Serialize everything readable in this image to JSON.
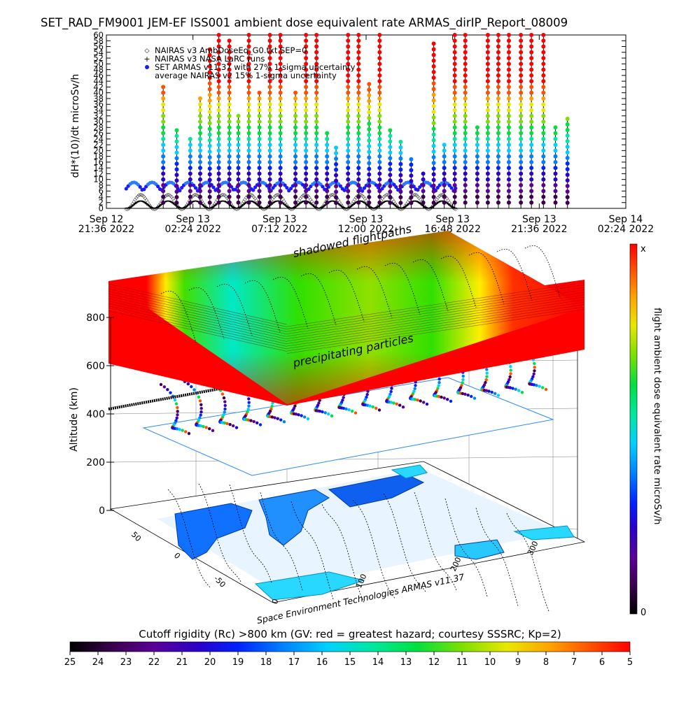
{
  "title": "SET_RAD_FM9001  JEM-EF ISS001 ambient dose equivalent rate ARMAS_dirIP_Report_08009",
  "chart_data": [
    {
      "type": "scatter",
      "ylabel": "dH*(10)/dt microSv/h",
      "ylim": [
        0,
        60
      ],
      "yticks": [
        0,
        2,
        4,
        6,
        8,
        10,
        12,
        14,
        16,
        18,
        20,
        22,
        24,
        26,
        28,
        30,
        32,
        34,
        36,
        38,
        40,
        42,
        44,
        46,
        48,
        50,
        52,
        54,
        56,
        58,
        60
      ],
      "xlim": [
        "Sep 12 21:36 2022",
        "Sep 14 02:24 2022"
      ],
      "xticks": [
        {
          "line1": "Sep 12",
          "line2": "21:36 2022"
        },
        {
          "line1": "Sep 13",
          "line2": "02:24 2022"
        },
        {
          "line1": "Sep 13",
          "line2": "07:12 2022"
        },
        {
          "line1": "Sep 13",
          "line2": "12:00 2022"
        },
        {
          "line1": "Sep 13",
          "line2": "16:48 2022"
        },
        {
          "line1": "Sep 13",
          "line2": "21:36 2022"
        },
        {
          "line1": "Sep 14",
          "line2": "02:24 2022"
        }
      ],
      "legend_position": "top-left",
      "legend": [
        {
          "marker": "diamond",
          "text": "NAIRAS v3 AmbDoseEq_G0.txt SEP=0"
        },
        {
          "marker": "plus",
          "text": "NAIRAS v3 NASA LaRC runs"
        },
        {
          "marker": "filled-circle",
          "color": "#1a1aff",
          "text": "SET ARMAS v11.37 with 27% 1-sigma uncertainty"
        },
        {
          "marker": "none",
          "text": "average NAIRAS v2 15% 1-sigma uncertainty"
        }
      ],
      "series": [
        {
          "name": "SET ARMAS v11.37 with 27% 1-sigma uncertainty",
          "x_hours_range": [
            1.1,
            19.4
          ],
          "spikes": [
            {
              "t": "Sep 13 00:45",
              "peak": 42
            },
            {
              "t": "Sep 13 01:30",
              "peak": 27
            },
            {
              "t": "Sep 13 02:15",
              "peak": 24
            },
            {
              "t": "Sep 13 02:48",
              "peak": 38
            },
            {
              "t": "Sep 13 03:20",
              "peak": 55
            },
            {
              "t": "Sep 13 03:50",
              "peak": 60
            },
            {
              "t": "Sep 13 04:25",
              "peak": 58
            },
            {
              "t": "Sep 13 04:55",
              "peak": 32
            },
            {
              "t": "Sep 13 05:30",
              "peak": 60
            },
            {
              "t": "Sep 13 06:05",
              "peak": 40
            },
            {
              "t": "Sep 13 06:40",
              "peak": 60
            },
            {
              "t": "Sep 13 07:15",
              "peak": 60
            },
            {
              "t": "Sep 13 08:05",
              "peak": 40
            },
            {
              "t": "Sep 13 08:40",
              "peak": 60
            },
            {
              "t": "Sep 13 09:15",
              "peak": 60
            },
            {
              "t": "Sep 13 09:50",
              "peak": 26
            },
            {
              "t": "Sep 13 10:20",
              "peak": 21
            },
            {
              "t": "Sep 13 11:00",
              "peak": 60
            },
            {
              "t": "Sep 13 11:35",
              "peak": 60
            },
            {
              "t": "Sep 13 12:10",
              "peak": 43
            },
            {
              "t": "Sep 13 12:45",
              "peak": 60
            },
            {
              "t": "Sep 13 13:20",
              "peak": 27
            },
            {
              "t": "Sep 13 13:55",
              "peak": 23
            },
            {
              "t": "Sep 13 14:30",
              "peak": 17
            },
            {
              "t": "Sep 13 15:10",
              "peak": 12
            },
            {
              "t": "Sep 13 15:45",
              "peak": 57
            },
            {
              "t": "Sep 13 16:20",
              "peak": 22
            },
            {
              "t": "Sep 13 16:55",
              "peak": 60
            },
            {
              "t": "Sep 13 17:30",
              "peak": 60
            },
            {
              "t": "Sep 13 18:10",
              "peak": 28
            },
            {
              "t": "Sep 13 18:45",
              "peak": 60
            },
            {
              "t": "Sep 13 19:20",
              "peak": 60
            },
            {
              "t": "Sep 13 19:55",
              "peak": 60
            },
            {
              "t": "Sep 13 20:35",
              "peak": 60
            },
            {
              "t": "Sep 13 21:10",
              "peak": 60
            },
            {
              "t": "Sep 13 21:50",
              "peak": 60
            },
            {
              "t": "Sep 13 22:30",
              "peak": 28
            },
            {
              "t": "Sep 13 23:10",
              "peak": 31
            }
          ]
        },
        {
          "name": "NAIRAS v3 AmbDoseEq_G0.txt SEP=0",
          "baseline_range": [
            0,
            5
          ],
          "note_pattern": "periodic orbital oscillation"
        }
      ]
    },
    {
      "type": "3d-surface",
      "ylabel": "Altitude (km)",
      "zticks": [
        0,
        200,
        400,
        600,
        800
      ],
      "lat_ticks": [
        50,
        0,
        -50
      ],
      "lon_ticks": [
        0,
        100,
        200,
        300
      ],
      "layers": [
        {
          "name": "ambient dose surface",
          "altitude_km": 800
        },
        {
          "name": "flight track",
          "altitude_km": 400
        },
        {
          "name": "ground map",
          "altitude_km": 0
        }
      ],
      "annotations": [
        "shadowed flightpaths",
        "precipitating particles"
      ],
      "credit": "Space Environment Technologies ARMAS v11.37"
    }
  ],
  "colorbar_vertical": {
    "label": "flight ambient dose equivalent rate microSv/h",
    "top_label": "x",
    "bottom_label": "0"
  },
  "colorbar_horizontal": {
    "title": "Cutoff rigidity (Rc) >800 km (GV: red = greatest hazard; courtesy SSSRC; Kp=2)",
    "ticks": [
      "25",
      "24",
      "23",
      "22",
      "21",
      "20",
      "19",
      "18",
      "17",
      "16",
      "15",
      "14",
      "13",
      "12",
      "11",
      "10",
      "9",
      "8",
      "7",
      "6",
      "5"
    ]
  },
  "colors": {
    "scale": [
      "#000000",
      "#3c0050",
      "#5a0096",
      "#2a00c8",
      "#0022ff",
      "#0080ff",
      "#00d0ff",
      "#00e8a0",
      "#00e040",
      "#7ce000",
      "#e8e800",
      "#ffa000",
      "#ff5000",
      "#ff0000"
    ]
  }
}
